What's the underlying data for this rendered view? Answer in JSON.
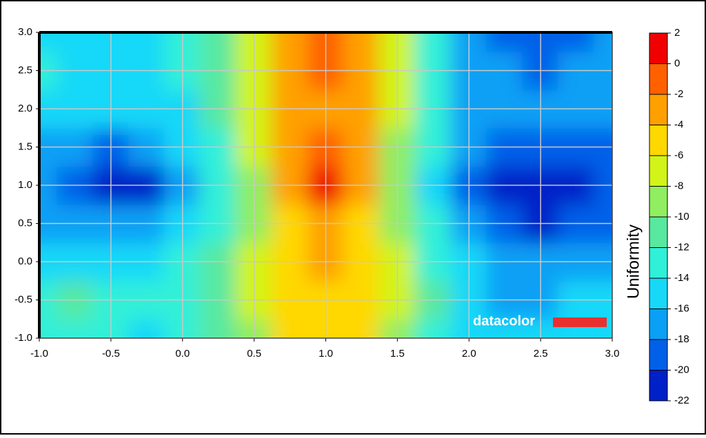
{
  "chart_data": {
    "type": "contour",
    "x": [
      -1,
      -0.75,
      -0.5,
      -0.25,
      0,
      0.25,
      0.5,
      0.75,
      1,
      1.25,
      1.5,
      1.75,
      2,
      2.25,
      2.5,
      2.75,
      3
    ],
    "y": [
      -1,
      -0.5,
      0,
      0.5,
      1,
      1.5,
      2,
      2.5,
      3
    ],
    "z": [
      [
        -12.5,
        -12.5,
        -13,
        -14,
        -13,
        -11,
        -8,
        -5.5,
        -4.5,
        -5.5,
        -8,
        -12,
        -15,
        -15.5,
        -15.5,
        -15,
        -14
      ],
      [
        -12,
        -11.5,
        -12,
        -13,
        -12.5,
        -10.5,
        -7.5,
        -5,
        -4,
        -5,
        -7.5,
        -11.5,
        -15,
        -16,
        -16.5,
        -15.5,
        -14
      ],
      [
        -14,
        -14,
        -14.5,
        -14.5,
        -13.5,
        -11,
        -7.5,
        -4.5,
        -3.5,
        -4.5,
        -7.5,
        -12,
        -15.5,
        -16.5,
        -17,
        -17,
        -16
      ],
      [
        -16,
        -16.5,
        -17,
        -17,
        -15.5,
        -12,
        -8,
        -4,
        -2.5,
        -4,
        -8,
        -13,
        -17.5,
        -19.5,
        -20,
        -19.5,
        -18.5
      ],
      [
        -17,
        -19,
        -20.5,
        -20,
        -17,
        -12.5,
        -8,
        -3.5,
        0.5,
        -3.5,
        -8.5,
        -14,
        -19,
        -21.5,
        -22,
        -21,
        -19.5
      ],
      [
        -16,
        -17,
        -18,
        -17.5,
        -15.5,
        -12,
        -7.5,
        -3.5,
        -1.5,
        -3.5,
        -8,
        -13,
        -17.5,
        -19,
        -19.5,
        -19,
        -18
      ],
      [
        -14.5,
        -15,
        -15,
        -15,
        -14,
        -11,
        -7.5,
        -3.5,
        -2,
        -3.5,
        -7.5,
        -12.5,
        -16,
        -16.5,
        -17,
        -16.5,
        -16
      ],
      [
        -13,
        -14,
        -14.5,
        -14.5,
        -13.5,
        -10.5,
        -7,
        -3,
        -1.5,
        -3,
        -7.5,
        -12.5,
        -16,
        -17.5,
        -18,
        -17.5,
        -16.5
      ],
      [
        -14,
        -14.5,
        -15,
        -15,
        -13.5,
        -10,
        -6.5,
        -3,
        -1.5,
        -3.5,
        -7.5,
        -12,
        -16,
        -18.5,
        -19,
        -18.5,
        -17
      ]
    ],
    "xlim": [
      -1,
      3
    ],
    "ylim": [
      -1,
      3
    ],
    "xticks": [
      {
        "value": -1,
        "label": "-1.0"
      },
      {
        "value": -0.5,
        "label": "-0.5"
      },
      {
        "value": 0,
        "label": "0.0"
      },
      {
        "value": 0.5,
        "label": "0.5"
      },
      {
        "value": 1,
        "label": "1.0"
      },
      {
        "value": 1.5,
        "label": "1.5"
      },
      {
        "value": 2,
        "label": "2.0"
      },
      {
        "value": 2.5,
        "label": "2.5"
      },
      {
        "value": 3,
        "label": "3.0"
      }
    ],
    "yticks": [
      {
        "value": -1,
        "label": "-1.0"
      },
      {
        "value": -0.5,
        "label": "-0.5"
      },
      {
        "value": 0,
        "label": "0.0"
      },
      {
        "value": 0.5,
        "label": "0.5"
      },
      {
        "value": 1,
        "label": "1.0"
      },
      {
        "value": 1.5,
        "label": "1.5"
      },
      {
        "value": 2,
        "label": "2.0"
      },
      {
        "value": 2.5,
        "label": "2.5"
      },
      {
        "value": 3,
        "label": "3.0"
      }
    ],
    "grid": true,
    "colorbar": {
      "label": "Uniformity",
      "levels": [
        -22,
        -20,
        -18,
        -16,
        -14,
        -12,
        -10,
        -8,
        -6,
        -4,
        -2,
        0,
        2
      ],
      "colors": [
        "#0020c8",
        "#0060e8",
        "#0aa0f5",
        "#18d8f8",
        "#30f0d8",
        "#58e8a0",
        "#90ee60",
        "#d2f418",
        "#ffd800",
        "#ffa000",
        "#ff6000",
        "#f00000"
      ],
      "ticks": [
        -22,
        -20,
        -18,
        -16,
        -14,
        -12,
        -10,
        -8,
        -6,
        -4,
        -2,
        0,
        2
      ]
    },
    "watermark": "datacolor"
  }
}
